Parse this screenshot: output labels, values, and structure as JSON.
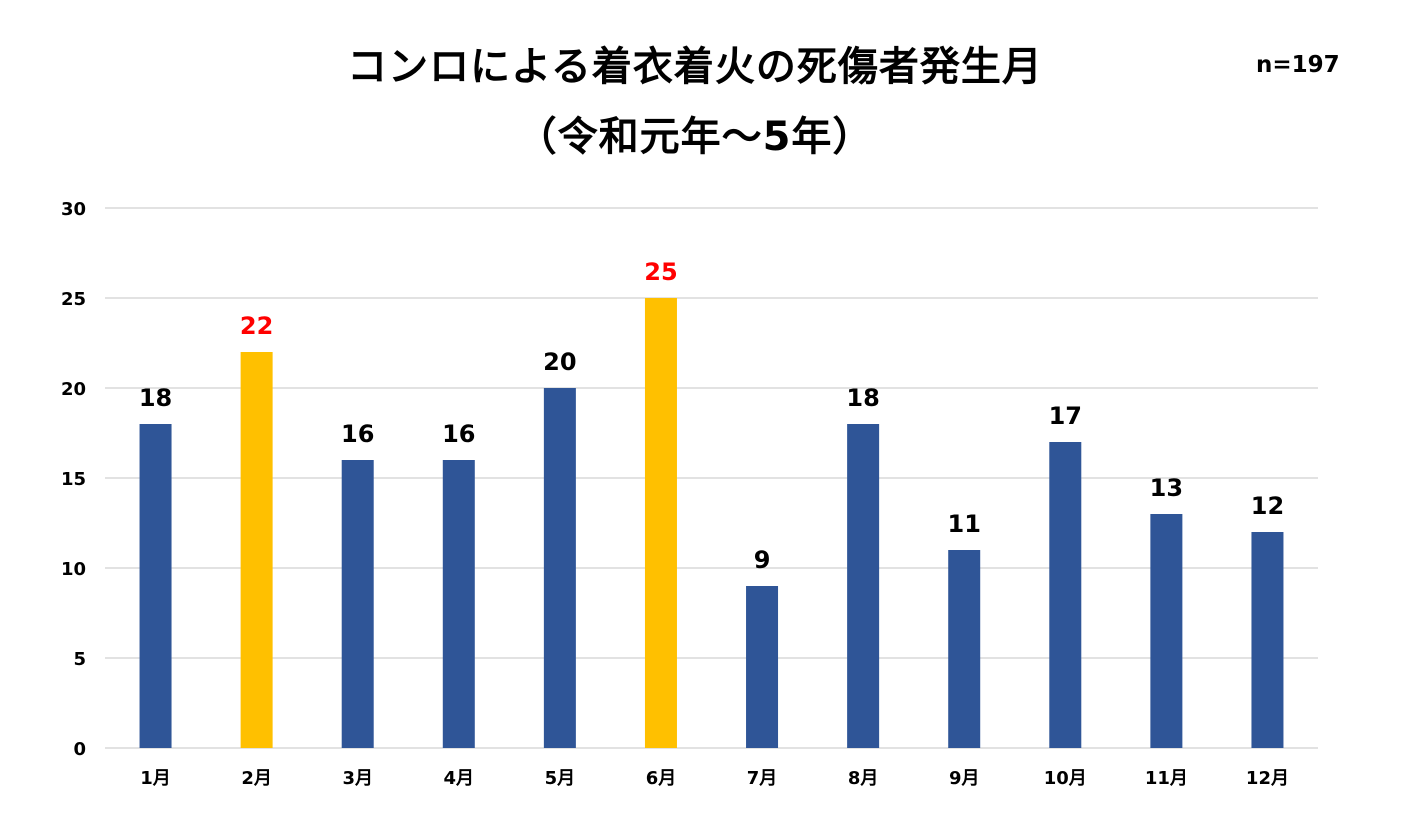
{
  "title_line1": "コンロによる着衣着火の死傷者発生月",
  "title_line2": "（令和元年～5年）",
  "sample_size": "n=197",
  "colors": {
    "bar_default": "#2F5597",
    "bar_highlight": "#FFC000",
    "label_default": "#000000",
    "label_highlight": "#FF0000",
    "grid": "#D9D9D9"
  },
  "chart_data": {
    "type": "bar",
    "categories": [
      "1月",
      "2月",
      "3月",
      "4月",
      "5月",
      "6月",
      "7月",
      "8月",
      "9月",
      "10月",
      "11月",
      "12月"
    ],
    "values": [
      18,
      22,
      16,
      16,
      20,
      25,
      9,
      18,
      11,
      17,
      13,
      12
    ],
    "highlighted": [
      "2月",
      "6月"
    ],
    "ylim": [
      0,
      30
    ],
    "yticks": [
      0,
      5,
      10,
      15,
      20,
      25,
      30
    ],
    "grid": true,
    "legend": "none",
    "data_labels": true
  }
}
